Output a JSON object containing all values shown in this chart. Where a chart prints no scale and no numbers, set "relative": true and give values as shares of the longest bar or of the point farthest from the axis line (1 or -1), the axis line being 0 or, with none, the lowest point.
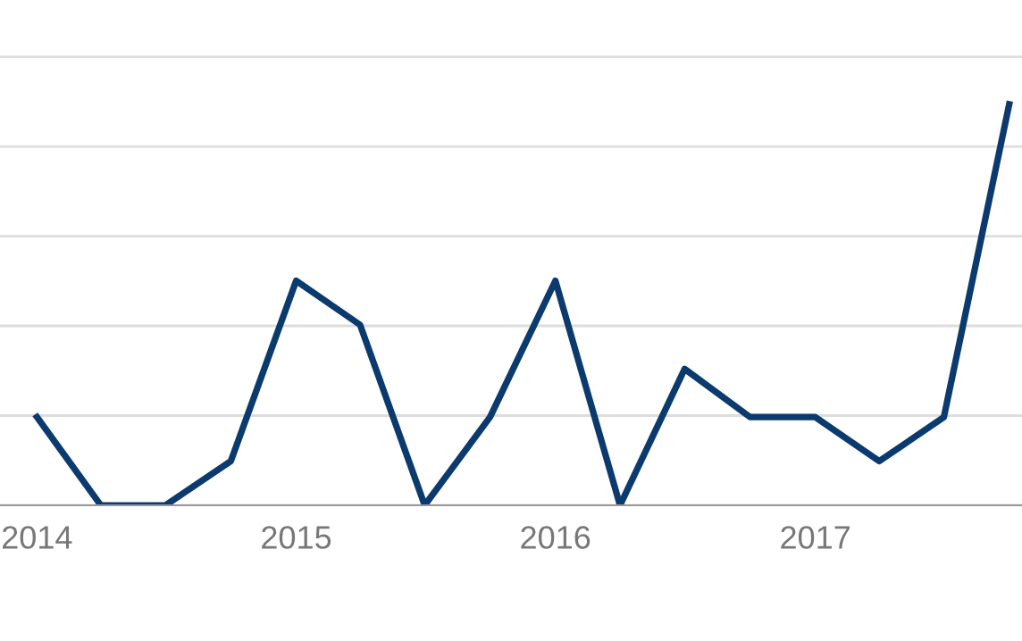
{
  "chart_data": {
    "type": "line",
    "relative": true,
    "x": [
      "2014-01-01",
      "2014-04-01",
      "2014-07-01",
      "2014-10-01",
      "2015-01-01",
      "2015-04-01",
      "2015-07-01",
      "2015-10-01",
      "2016-01-01",
      "2016-04-01",
      "2016-07-01",
      "2016-10-01",
      "2017-01-01",
      "2017-04-01",
      "2017-07-01",
      "2017-10-01"
    ],
    "series": [
      {
        "color": "#0b3a6e",
        "values": [
          0.22,
          0,
          0,
          0.11,
          0.56,
          0.45,
          0,
          0.22,
          0.56,
          0,
          0.34,
          0.22,
          0.22,
          0.11,
          0.22,
          1
        ]
      }
    ],
    "xlim": [
      "2013-11-10",
      "2017-10-19"
    ],
    "xticks": [
      {
        "value": "2014-01-01",
        "label": "2014"
      },
      {
        "value": "2015-01-01",
        "label": "2015"
      },
      {
        "value": "2016-01-01",
        "label": "2016"
      },
      {
        "value": "2017-01-01",
        "label": "2017"
      }
    ],
    "grid": "y",
    "marker": "none",
    "line_style": "solid",
    "legend": false
  }
}
